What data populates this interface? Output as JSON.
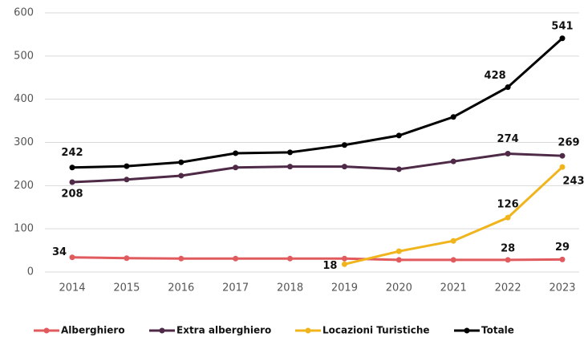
{
  "chart_data": {
    "type": "line",
    "x": [
      "2014",
      "2015",
      "2016",
      "2017",
      "2018",
      "2019",
      "2020",
      "2021",
      "2022",
      "2023"
    ],
    "ylim": [
      0,
      600
    ],
    "yticks": [
      0,
      100,
      200,
      300,
      400,
      500,
      600
    ],
    "grid": true,
    "legend": "bottom",
    "series": [
      {
        "name": "Alberghiero",
        "color": "#e05a5e",
        "values": [
          34,
          32,
          31,
          31,
          31,
          31,
          28,
          28,
          28,
          29
        ],
        "value_labels": [
          "34",
          null,
          null,
          null,
          null,
          null,
          null,
          null,
          "28",
          "29"
        ]
      },
      {
        "name": "Extra alberghiero",
        "color": "#4e2a47",
        "values": [
          208,
          214,
          223,
          242,
          244,
          244,
          238,
          256,
          274,
          269
        ],
        "value_labels": [
          "208",
          null,
          null,
          null,
          null,
          null,
          null,
          null,
          "274",
          "269"
        ]
      },
      {
        "name": "Locazioni Turistiche",
        "color": "#f0b41c",
        "values": [
          null,
          null,
          null,
          null,
          null,
          18,
          48,
          72,
          126,
          243
        ],
        "value_labels": [
          null,
          null,
          null,
          null,
          null,
          "18",
          null,
          null,
          "126",
          "243"
        ]
      },
      {
        "name": "Totale",
        "color": "#000000",
        "values": [
          242,
          245,
          254,
          275,
          277,
          294,
          316,
          359,
          428,
          541
        ],
        "value_labels": [
          "242",
          null,
          null,
          null,
          null,
          null,
          null,
          null,
          "428",
          "541"
        ]
      }
    ]
  }
}
